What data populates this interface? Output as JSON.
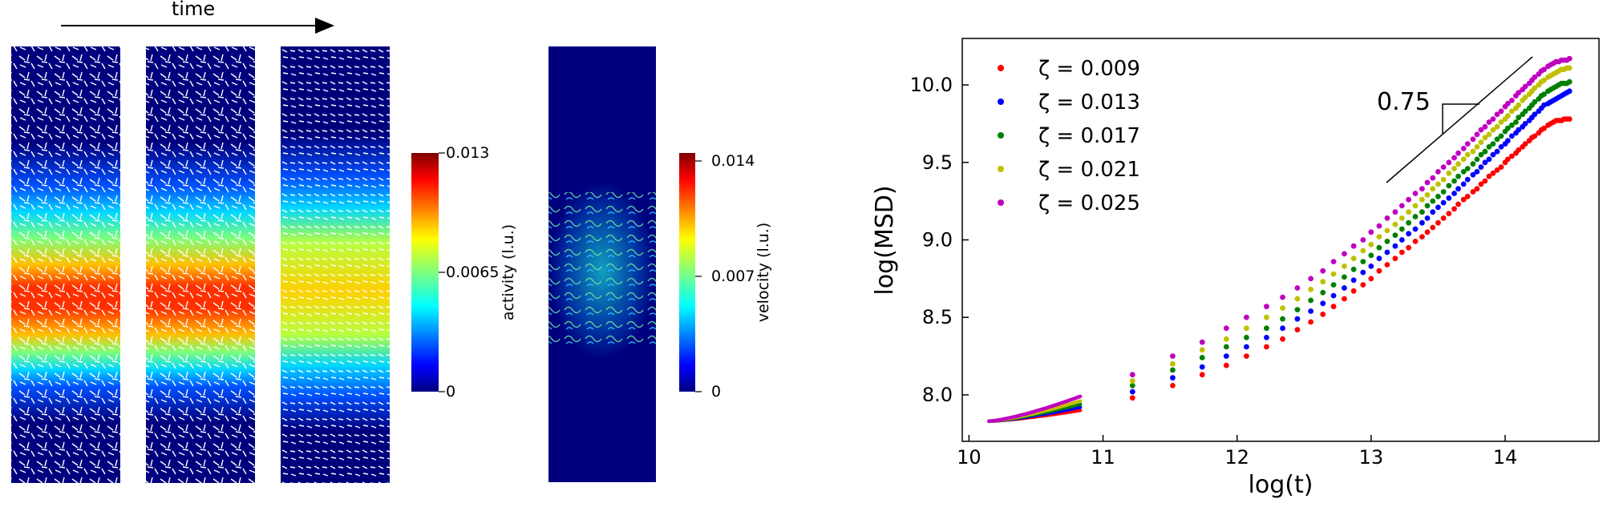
{
  "left_panel": {
    "time_label": "time",
    "activity_colorbar": {
      "label": "activity (l.u.)",
      "ticks": [
        "0.013",
        "0.0065",
        "0"
      ]
    },
    "velocity_colorbar": {
      "label": "velocity (l.u.)",
      "ticks": [
        "0.014",
        "0.007",
        "0"
      ]
    },
    "colormap": "jet",
    "background_color": "#00007f"
  },
  "chart_data": {
    "type": "scatter",
    "xlabel": "log(t)",
    "ylabel": "log(MSD)",
    "xlim": [
      9.95,
      14.7
    ],
    "ylim": [
      7.7,
      10.3
    ],
    "xticks": [
      10,
      11,
      12,
      13,
      14
    ],
    "yticks": [
      8.0,
      8.5,
      9.0,
      9.5,
      10.0
    ],
    "legend_position": "top-left",
    "slope_annotation": "0.75",
    "series": [
      {
        "name": "ζ = 0.009",
        "color": "#ff0000",
        "start": 7.83,
        "early_end": 7.9,
        "x": [
          11.22,
          11.52,
          11.74,
          11.92,
          12.07,
          12.22,
          12.34,
          12.45,
          12.55,
          12.64,
          12.72,
          12.8,
          12.87,
          12.94,
          13.0,
          13.06,
          13.12,
          13.18,
          13.23,
          13.28,
          13.33,
          13.38,
          13.42,
          13.46,
          13.5,
          13.54,
          13.58,
          13.62,
          13.65,
          13.69,
          13.72,
          13.76,
          13.79,
          13.82,
          13.85,
          13.88,
          13.91,
          13.94,
          13.97,
          14.0,
          14.02,
          14.05,
          14.08,
          14.1,
          14.13,
          14.15,
          14.18,
          14.2,
          14.22,
          14.25,
          14.27,
          14.29,
          14.32,
          14.34,
          14.36,
          14.38,
          14.4,
          14.42,
          14.44,
          14.46,
          14.48
        ],
        "y": [
          7.98,
          8.06,
          8.13,
          8.19,
          8.25,
          8.31,
          8.36,
          8.42,
          8.47,
          8.52,
          8.57,
          8.62,
          8.67,
          8.71,
          8.75,
          8.8,
          8.84,
          8.88,
          8.92,
          8.95,
          8.99,
          9.02,
          9.05,
          9.08,
          9.11,
          9.14,
          9.17,
          9.2,
          9.23,
          9.26,
          9.28,
          9.31,
          9.33,
          9.36,
          9.38,
          9.41,
          9.43,
          9.45,
          9.47,
          9.5,
          9.52,
          9.54,
          9.56,
          9.58,
          9.6,
          9.62,
          9.64,
          9.66,
          9.67,
          9.69,
          9.71,
          9.72,
          9.74,
          9.75,
          9.76,
          9.77,
          9.77,
          9.77,
          9.78,
          9.78,
          9.78
        ]
      },
      {
        "name": "ζ = 0.013",
        "color": "#0000ff",
        "start": 7.83,
        "early_end": 7.92,
        "x": [
          11.22,
          11.52,
          11.74,
          11.92,
          12.07,
          12.22,
          12.34,
          12.45,
          12.55,
          12.64,
          12.72,
          12.8,
          12.87,
          12.94,
          13.0,
          13.06,
          13.12,
          13.18,
          13.23,
          13.28,
          13.33,
          13.38,
          13.42,
          13.46,
          13.5,
          13.54,
          13.58,
          13.62,
          13.65,
          13.69,
          13.72,
          13.76,
          13.79,
          13.82,
          13.85,
          13.88,
          13.91,
          13.94,
          13.97,
          14.0,
          14.02,
          14.05,
          14.08,
          14.1,
          14.13,
          14.15,
          14.18,
          14.2,
          14.22,
          14.25,
          14.27,
          14.29,
          14.32,
          14.34,
          14.36,
          14.38,
          14.4,
          14.42,
          14.44,
          14.46,
          14.48
        ],
        "y": [
          8.02,
          8.11,
          8.18,
          8.25,
          8.31,
          8.37,
          8.43,
          8.49,
          8.54,
          8.59,
          8.64,
          8.69,
          8.74,
          8.79,
          8.83,
          8.88,
          8.92,
          8.96,
          9.0,
          9.04,
          9.07,
          9.11,
          9.14,
          9.18,
          9.21,
          9.24,
          9.27,
          9.3,
          9.33,
          9.36,
          9.39,
          9.42,
          9.44,
          9.47,
          9.5,
          9.52,
          9.55,
          9.57,
          9.6,
          9.62,
          9.64,
          9.67,
          9.69,
          9.71,
          9.73,
          9.75,
          9.77,
          9.79,
          9.81,
          9.83,
          9.85,
          9.87,
          9.88,
          9.89,
          9.9,
          9.91,
          9.92,
          9.93,
          9.94,
          9.95,
          9.96
        ]
      },
      {
        "name": "ζ = 0.017",
        "color": "#008000",
        "start": 7.83,
        "early_end": 7.94,
        "x": [
          11.22,
          11.52,
          11.74,
          11.92,
          12.07,
          12.22,
          12.34,
          12.45,
          12.55,
          12.64,
          12.72,
          12.8,
          12.87,
          12.94,
          13.0,
          13.06,
          13.12,
          13.18,
          13.23,
          13.28,
          13.33,
          13.38,
          13.42,
          13.46,
          13.5,
          13.54,
          13.58,
          13.62,
          13.65,
          13.69,
          13.72,
          13.76,
          13.79,
          13.82,
          13.85,
          13.88,
          13.91,
          13.94,
          13.97,
          14.0,
          14.02,
          14.05,
          14.08,
          14.1,
          14.13,
          14.15,
          14.18,
          14.2,
          14.22,
          14.25,
          14.27,
          14.29,
          14.32,
          14.34,
          14.36,
          14.38,
          14.4,
          14.42,
          14.44,
          14.46,
          14.48
        ],
        "y": [
          8.06,
          8.16,
          8.24,
          8.31,
          8.37,
          8.43,
          8.49,
          8.55,
          8.61,
          8.66,
          8.71,
          8.76,
          8.81,
          8.86,
          8.9,
          8.95,
          8.99,
          9.03,
          9.07,
          9.11,
          9.15,
          9.18,
          9.22,
          9.25,
          9.28,
          9.31,
          9.35,
          9.38,
          9.41,
          9.44,
          9.46,
          9.49,
          9.52,
          9.55,
          9.57,
          9.6,
          9.62,
          9.65,
          9.67,
          9.7,
          9.72,
          9.74,
          9.76,
          9.79,
          9.81,
          9.83,
          9.85,
          9.87,
          9.89,
          9.91,
          9.93,
          9.94,
          9.96,
          9.97,
          9.98,
          9.99,
          10.0,
          10.01,
          10.01,
          10.01,
          10.02
        ]
      },
      {
        "name": "ζ = 0.021",
        "color": "#c0c000",
        "start": 7.83,
        "early_end": 7.96,
        "x": [
          11.22,
          11.52,
          11.74,
          11.92,
          12.07,
          12.22,
          12.34,
          12.45,
          12.55,
          12.64,
          12.72,
          12.8,
          12.87,
          12.94,
          13.0,
          13.06,
          13.12,
          13.18,
          13.23,
          13.28,
          13.33,
          13.38,
          13.42,
          13.46,
          13.5,
          13.54,
          13.58,
          13.62,
          13.65,
          13.69,
          13.72,
          13.76,
          13.79,
          13.82,
          13.85,
          13.88,
          13.91,
          13.94,
          13.97,
          14.0,
          14.02,
          14.05,
          14.08,
          14.1,
          14.13,
          14.15,
          14.18,
          14.2,
          14.22,
          14.25,
          14.27,
          14.29,
          14.32,
          14.34,
          14.36,
          14.38,
          14.4,
          14.42,
          14.44,
          14.46,
          14.48
        ],
        "y": [
          8.09,
          8.2,
          8.29,
          8.36,
          8.43,
          8.5,
          8.56,
          8.62,
          8.68,
          8.73,
          8.78,
          8.83,
          8.88,
          8.93,
          8.97,
          9.02,
          9.06,
          9.1,
          9.14,
          9.18,
          9.22,
          9.26,
          9.29,
          9.33,
          9.36,
          9.39,
          9.43,
          9.46,
          9.49,
          9.52,
          9.55,
          9.57,
          9.6,
          9.63,
          9.66,
          9.68,
          9.71,
          9.73,
          9.76,
          9.78,
          9.8,
          9.83,
          9.85,
          9.87,
          9.9,
          9.92,
          9.94,
          9.96,
          9.98,
          10.0,
          10.02,
          10.03,
          10.05,
          10.06,
          10.07,
          10.08,
          10.09,
          10.1,
          10.1,
          10.11,
          10.11
        ]
      },
      {
        "name": "ζ = 0.025",
        "color": "#c000c0",
        "start": 7.83,
        "early_end": 7.99,
        "x": [
          11.22,
          11.52,
          11.74,
          11.92,
          12.07,
          12.22,
          12.34,
          12.45,
          12.55,
          12.64,
          12.72,
          12.8,
          12.87,
          12.94,
          13.0,
          13.06,
          13.12,
          13.18,
          13.23,
          13.28,
          13.33,
          13.38,
          13.42,
          13.46,
          13.5,
          13.54,
          13.58,
          13.62,
          13.65,
          13.69,
          13.72,
          13.76,
          13.79,
          13.82,
          13.85,
          13.88,
          13.91,
          13.94,
          13.97,
          14.0,
          14.02,
          14.05,
          14.08,
          14.1,
          14.13,
          14.15,
          14.18,
          14.2,
          14.22,
          14.25,
          14.27,
          14.29,
          14.32,
          14.34,
          14.36,
          14.38,
          14.4,
          14.42,
          14.44,
          14.46,
          14.48
        ],
        "y": [
          8.13,
          8.25,
          8.34,
          8.43,
          8.5,
          8.57,
          8.63,
          8.69,
          8.75,
          8.8,
          8.86,
          8.91,
          8.96,
          9.0,
          9.05,
          9.09,
          9.14,
          9.18,
          9.22,
          9.26,
          9.3,
          9.33,
          9.37,
          9.4,
          9.44,
          9.47,
          9.5,
          9.53,
          9.56,
          9.59,
          9.62,
          9.65,
          9.68,
          9.71,
          9.73,
          9.76,
          9.78,
          9.81,
          9.83,
          9.86,
          9.88,
          9.9,
          9.93,
          9.95,
          9.97,
          9.99,
          10.01,
          10.03,
          10.05,
          10.07,
          10.09,
          10.1,
          10.12,
          10.13,
          10.14,
          10.15,
          10.15,
          10.16,
          10.16,
          10.16,
          10.17
        ]
      }
    ]
  }
}
